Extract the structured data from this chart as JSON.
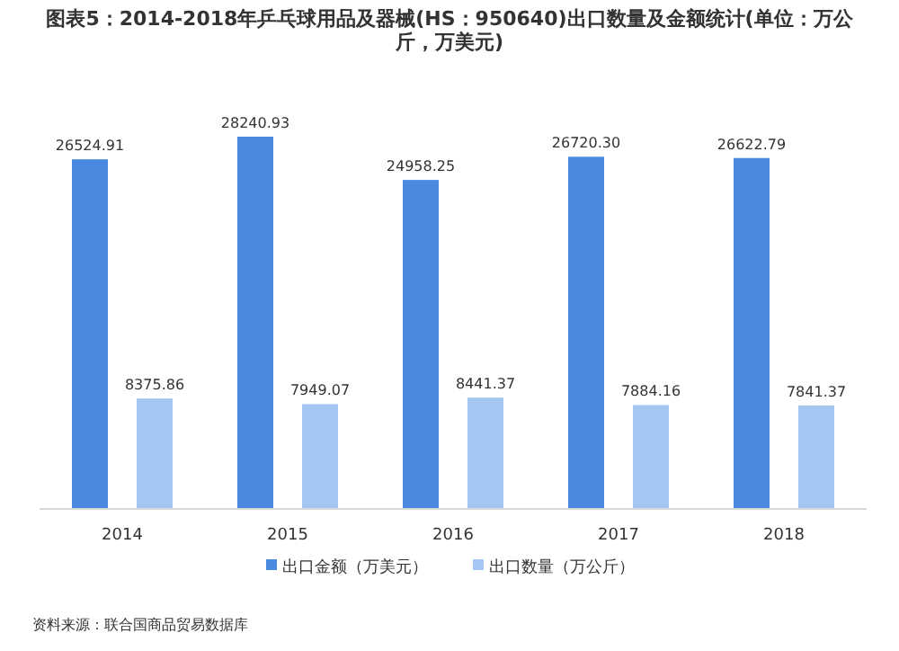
{
  "chart_data": {
    "type": "bar",
    "title": "图表5：2014-2018年乒乓球用品及器械(HS：950640)出口数量及金额统计(单位：万公斤，万美元)",
    "categories": [
      "2014",
      "2015",
      "2016",
      "2017",
      "2018"
    ],
    "series": [
      {
        "name": "出口金额（万美元）",
        "color": "#4a89e0",
        "values": [
          26524.91,
          28240.93,
          24958.25,
          26720.3,
          26622.79
        ],
        "value_labels": [
          "26524.91",
          "28240.93",
          "24958.25",
          "26720.30",
          "26622.79"
        ]
      },
      {
        "name": "出口数量（万公斤）",
        "color": "#a3c6f3",
        "values": [
          8375.86,
          7949.07,
          8441.37,
          7884.16,
          7841.37
        ],
        "value_labels": [
          "8375.86",
          "7949.07",
          "8441.37",
          "7884.16",
          "7841.37"
        ]
      }
    ],
    "legend": "bottom",
    "annotations": [
      "资料来源：联合国商品贸易数据库"
    ]
  }
}
